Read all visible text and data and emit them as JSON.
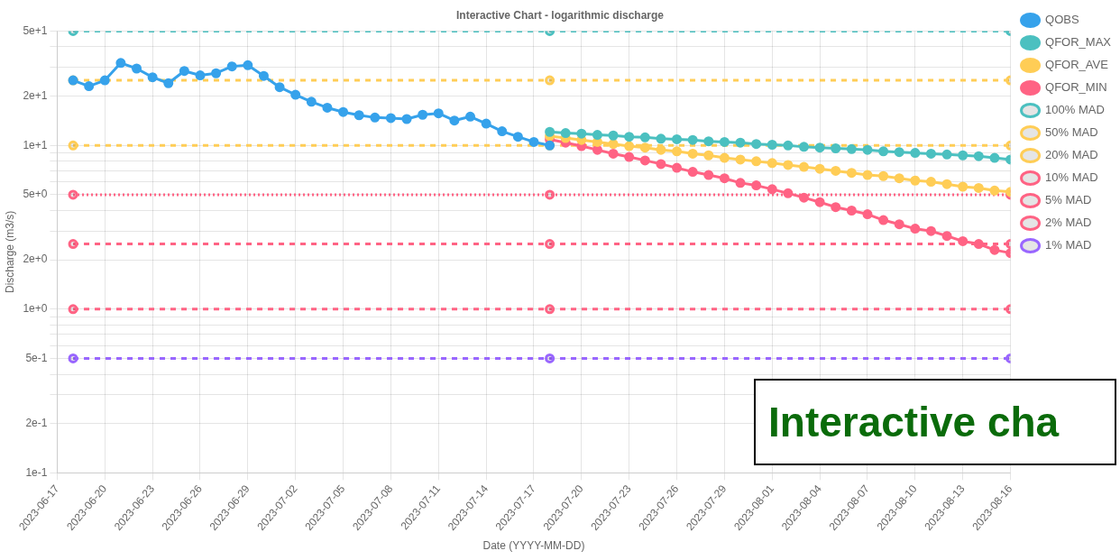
{
  "chart_data": {
    "type": "line",
    "title": "Interactive Chart - logarithmic discharge",
    "xlabel": "Date (YYYY-MM-DD)",
    "ylabel": "Discharge (m3/s)",
    "annotations": [
      "Interactive cha"
    ],
    "log": "y",
    "grid": true,
    "legend": "right",
    "marker": "circle",
    "xlim": [
      "2023-06-17",
      "2023-08-16"
    ],
    "xticks": [
      "2023-06-17",
      "2023-06-20",
      "2023-06-23",
      "2023-06-26",
      "2023-06-29",
      "2023-07-02",
      "2023-07-05",
      "2023-07-08",
      "2023-07-11",
      "2023-07-14",
      "2023-07-17",
      "2023-07-20",
      "2023-07-23",
      "2023-07-26",
      "2023-07-29",
      "2023-08-01",
      "2023-08-04",
      "2023-08-07",
      "2023-08-10",
      "2023-08-13",
      "2023-08-16"
    ],
    "ylim": [
      0.1,
      50
    ],
    "yticks": [
      {
        "value": 0.1,
        "label": "1e-1"
      },
      {
        "value": 0.2,
        "label": "2e-1"
      },
      {
        "value": 0.3,
        "label": null
      },
      {
        "value": 0.4,
        "label": null
      },
      {
        "value": 0.5,
        "label": "5e-1"
      },
      {
        "value": 0.6,
        "label": null
      },
      {
        "value": 0.7,
        "label": null
      },
      {
        "value": 0.8,
        "label": null
      },
      {
        "value": 0.9,
        "label": null
      },
      {
        "value": 1,
        "label": "1e+0"
      },
      {
        "value": 2,
        "label": "2e+0"
      },
      {
        "value": 3,
        "label": null
      },
      {
        "value": 4,
        "label": null
      },
      {
        "value": 5,
        "label": "5e+0"
      },
      {
        "value": 6,
        "label": null
      },
      {
        "value": 7,
        "label": null
      },
      {
        "value": 8,
        "label": null
      },
      {
        "value": 9,
        "label": null
      },
      {
        "value": 10,
        "label": "1e+1"
      },
      {
        "value": 20,
        "label": "2e+1"
      },
      {
        "value": 30,
        "label": null
      },
      {
        "value": 40,
        "label": null
      },
      {
        "value": 50,
        "label": "5e+1"
      }
    ],
    "series": [
      {
        "name": "QOBS",
        "color": "#36a2eb",
        "line_style": "solid",
        "x": [
          "2023-06-18",
          "2023-06-19",
          "2023-06-20",
          "2023-06-21",
          "2023-06-22",
          "2023-06-23",
          "2023-06-24",
          "2023-06-25",
          "2023-06-26",
          "2023-06-27",
          "2023-06-28",
          "2023-06-29",
          "2023-06-30",
          "2023-07-01",
          "2023-07-02",
          "2023-07-03",
          "2023-07-04",
          "2023-07-05",
          "2023-07-06",
          "2023-07-07",
          "2023-07-08",
          "2023-07-09",
          "2023-07-10",
          "2023-07-11",
          "2023-07-12",
          "2023-07-13",
          "2023-07-14",
          "2023-07-15",
          "2023-07-16",
          "2023-07-17",
          "2023-07-18"
        ],
        "values": [
          25.0,
          23.0,
          25.0,
          31.9,
          29.5,
          26.1,
          24.0,
          28.5,
          26.8,
          27.6,
          30.4,
          30.9,
          26.6,
          22.7,
          20.4,
          18.5,
          17.0,
          16.0,
          15.3,
          14.8,
          14.7,
          14.5,
          15.4,
          15.7,
          14.2,
          15.0,
          13.6,
          12.2,
          11.3,
          10.5,
          10.0
        ]
      },
      {
        "name": "QFOR_MAX",
        "color": "#4bc0c0",
        "line_style": "solid",
        "x": [
          "2023-07-18",
          "2023-07-19",
          "2023-07-20",
          "2023-07-21",
          "2023-07-22",
          "2023-07-23",
          "2023-07-24",
          "2023-07-25",
          "2023-07-26",
          "2023-07-27",
          "2023-07-28",
          "2023-07-29",
          "2023-07-30",
          "2023-07-31",
          "2023-08-01",
          "2023-08-02",
          "2023-08-03",
          "2023-08-04",
          "2023-08-05",
          "2023-08-06",
          "2023-08-07",
          "2023-08-08",
          "2023-08-09",
          "2023-08-10",
          "2023-08-11",
          "2023-08-12",
          "2023-08-13",
          "2023-08-14",
          "2023-08-15",
          "2023-08-16"
        ],
        "values": [
          12.1,
          11.9,
          11.8,
          11.6,
          11.5,
          11.3,
          11.2,
          11.0,
          10.9,
          10.8,
          10.6,
          10.5,
          10.4,
          10.2,
          10.1,
          10.0,
          9.8,
          9.7,
          9.6,
          9.5,
          9.4,
          9.2,
          9.1,
          9.0,
          8.9,
          8.8,
          8.7,
          8.6,
          8.4,
          8.2
        ]
      },
      {
        "name": "QFOR_AVE",
        "color": "#ffcd56",
        "line_style": "solid",
        "x": [
          "2023-07-18",
          "2023-07-19",
          "2023-07-20",
          "2023-07-21",
          "2023-07-22",
          "2023-07-23",
          "2023-07-24",
          "2023-07-25",
          "2023-07-26",
          "2023-07-27",
          "2023-07-28",
          "2023-07-29",
          "2023-07-30",
          "2023-07-31",
          "2023-08-01",
          "2023-08-02",
          "2023-08-03",
          "2023-08-04",
          "2023-08-05",
          "2023-08-06",
          "2023-08-07",
          "2023-08-08",
          "2023-08-09",
          "2023-08-10",
          "2023-08-11",
          "2023-08-12",
          "2023-08-13",
          "2023-08-14",
          "2023-08-15",
          "2023-08-16"
        ],
        "values": [
          11.4,
          11.1,
          10.8,
          10.5,
          10.2,
          9.9,
          9.7,
          9.4,
          9.2,
          8.9,
          8.7,
          8.4,
          8.2,
          8.0,
          7.8,
          7.6,
          7.4,
          7.2,
          7.0,
          6.8,
          6.6,
          6.5,
          6.3,
          6.1,
          6.0,
          5.8,
          5.6,
          5.5,
          5.3,
          5.2
        ]
      },
      {
        "name": "QFOR_MIN",
        "color": "#ff6384",
        "line_style": "solid",
        "x": [
          "2023-07-18",
          "2023-07-19",
          "2023-07-20",
          "2023-07-21",
          "2023-07-22",
          "2023-07-23",
          "2023-07-24",
          "2023-07-25",
          "2023-07-26",
          "2023-07-27",
          "2023-07-28",
          "2023-07-29",
          "2023-07-30",
          "2023-07-31",
          "2023-08-01",
          "2023-08-02",
          "2023-08-03",
          "2023-08-04",
          "2023-08-05",
          "2023-08-06",
          "2023-08-07",
          "2023-08-08",
          "2023-08-09",
          "2023-08-10",
          "2023-08-11",
          "2023-08-12",
          "2023-08-13",
          "2023-08-14",
          "2023-08-15",
          "2023-08-16"
        ],
        "values": [
          10.9,
          10.4,
          9.9,
          9.4,
          8.9,
          8.5,
          8.1,
          7.7,
          7.3,
          6.9,
          6.6,
          6.3,
          5.9,
          5.7,
          5.4,
          5.1,
          4.8,
          4.5,
          4.2,
          4.0,
          3.8,
          3.5,
          3.3,
          3.1,
          3.0,
          2.8,
          2.6,
          2.5,
          2.3,
          2.2
        ]
      },
      {
        "name": "100% MAD",
        "color": "#4bc0c0",
        "line_style": "dashed",
        "x": [
          "2023-06-18",
          "2023-07-18",
          "2023-08-16"
        ],
        "values": [
          50,
          50,
          50
        ]
      },
      {
        "name": "50% MAD",
        "color": "#ffcd56",
        "line_style": "dashed",
        "x": [
          "2023-06-18",
          "2023-07-18",
          "2023-08-16"
        ],
        "values": [
          25,
          25,
          25
        ]
      },
      {
        "name": "20% MAD",
        "color": "#ffcd56",
        "line_style": "dashed",
        "x": [
          "2023-06-18",
          "2023-07-18",
          "2023-08-16"
        ],
        "values": [
          10,
          10,
          10
        ]
      },
      {
        "name": "10% MAD",
        "color": "#ff6384",
        "line_style": "dotted",
        "x": [
          "2023-06-18",
          "2023-07-18",
          "2023-08-16"
        ],
        "values": [
          5,
          5,
          5
        ]
      },
      {
        "name": "5% MAD",
        "color": "#ff6384",
        "line_style": "dashed",
        "x": [
          "2023-06-18",
          "2023-07-18",
          "2023-08-16"
        ],
        "values": [
          2.5,
          2.5,
          2.5
        ]
      },
      {
        "name": "2% MAD",
        "color": "#ff6384",
        "line_style": "dashed",
        "x": [
          "2023-06-18",
          "2023-07-18",
          "2023-08-16"
        ],
        "values": [
          1,
          1,
          1
        ]
      },
      {
        "name": "1% MAD",
        "color": "#9966ff",
        "line_style": "dashed",
        "x": [
          "2023-06-18",
          "2023-07-18",
          "2023-08-16"
        ],
        "values": [
          0.5,
          0.5,
          0.5
        ]
      }
    ]
  }
}
